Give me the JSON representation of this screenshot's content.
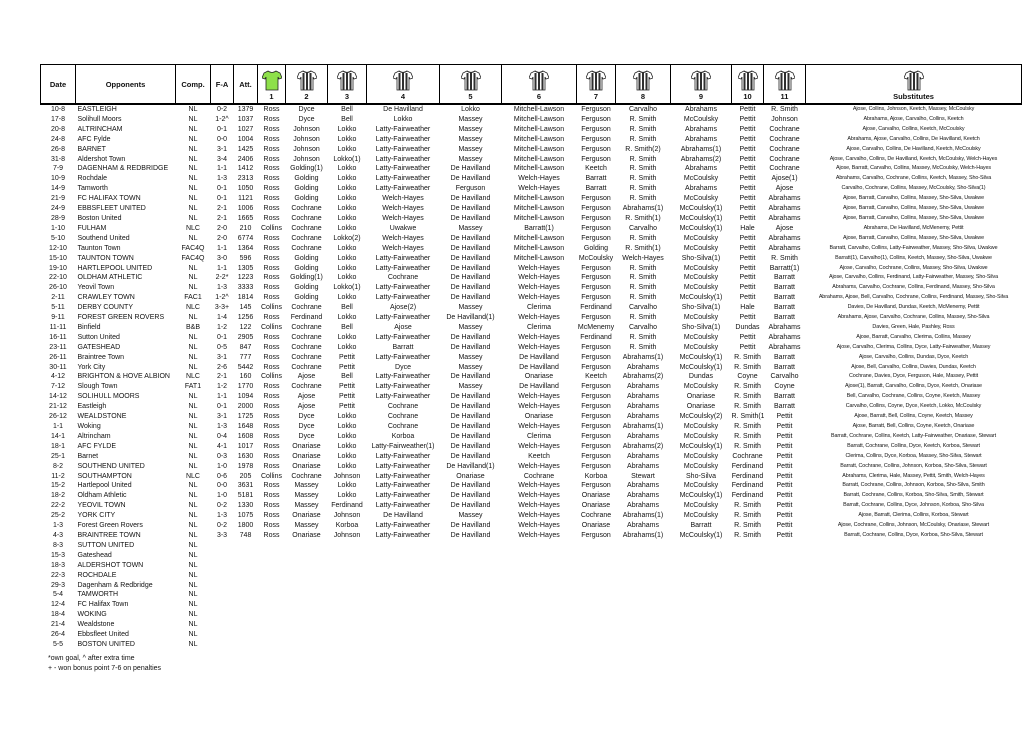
{
  "headers": {
    "date": "Date",
    "opponents": "Opponents",
    "comp": "Comp.",
    "fa": "F-A",
    "att": "Att.",
    "n1": "1",
    "n2": "2",
    "n3": "3",
    "n4": "4",
    "n5": "5",
    "n6": "6",
    "n7": "7",
    "n8": "8",
    "n9": "9",
    "n10": "10",
    "n11": "11",
    "subs": "Substitutes"
  },
  "colors": {
    "keeper_shirt": "#8ee04a",
    "outfield_shirt": "#2e2e2e"
  },
  "rows": [
    [
      "10-8",
      "EASTLEIGH",
      "NL",
      "0-2",
      "1379",
      "Ross",
      "Dyce",
      "Bell",
      "De Havilland",
      "Lokko",
      "Mitchell-Lawson",
      "Ferguson",
      "Carvalho",
      "Abrahams",
      "Pettit",
      "R. Smith",
      "Ajose, Collins, Johnson, Keetch, Massey, McCoulsky"
    ],
    [
      "17-8",
      "Solihull Moors",
      "NL",
      "1-2^",
      "1037",
      "Ross",
      "Dyce",
      "Bell",
      "Lokko",
      "Massey",
      "Mitchell-Lawson",
      "Ferguson",
      "R. Smith",
      "McCoulsky",
      "Pettit",
      "Johnson",
      "Abrahams, Ajose, Carvalho, Collins, Keetch"
    ],
    [
      "20-8",
      "ALTRINCHAM",
      "NL",
      "0-1",
      "1027",
      "Ross",
      "Johnson",
      "Lokko",
      "Latty-Fairweather",
      "Massey",
      "Mitchell-Lawson",
      "Ferguson",
      "R. Smith",
      "Abrahams",
      "Pettit",
      "Cochrane",
      "Ajose, Carvalho, Collins, Keetch, McCoulsky"
    ],
    [
      "24-8",
      "AFC Fylde",
      "NL",
      "0-0",
      "1004",
      "Ross",
      "Johnson",
      "Lokko",
      "Latty-Fairweather",
      "Massey",
      "Mitchell-Lawson",
      "Ferguson",
      "R. Smith",
      "Abrahams",
      "Pettit",
      "Cochrane",
      "Abrahams, Ajose, Carvalho, Collins, De Havilland, Keetch"
    ],
    [
      "26-8",
      "BARNET",
      "NL",
      "3-1",
      "1425",
      "Ross",
      "Johnson",
      "Lokko",
      "Latty-Fairweather",
      "Massey",
      "Mitchell-Lawson",
      "Ferguson",
      "R. Smith(2)",
      "Abrahams(1)",
      "Pettit",
      "Cochrane",
      "Ajose, Carvalho, Collins, De Havilland, Keetch, McCoulsky"
    ],
    [
      "31-8",
      "Aldershot Town",
      "NL",
      "3-4",
      "2406",
      "Ross",
      "Johnson",
      "Lokko(1)",
      "Latty-Fairweather",
      "Massey",
      "Mitchell-Lawson",
      "Ferguson",
      "R. Smith",
      "Abrahams(2)",
      "Pettit",
      "Cochrane",
      "Ajose, Carvalho, Collins, De Havilland, Keetch, McCoulsky, Welch-Hayes"
    ],
    [
      "7-9",
      "DAGENHAM & REDBRIDGE",
      "NL",
      "1-1",
      "1412",
      "Ross",
      "Golding(1)",
      "Lokko",
      "Latty-Fairweather",
      "De Havilland",
      "Mitchell-Lawson",
      "Keetch",
      "R. Smith",
      "Abrahams",
      "Pettit",
      "Cochrane",
      "Ajose, Barratt, Carvalho, Collins, Massey, McCoulsky, Welch-Hayes"
    ],
    [
      "10-9",
      "Rochdale",
      "NL",
      "1-3",
      "2313",
      "Ross",
      "Golding",
      "Lokko",
      "Latty-Fairweather",
      "De Havilland",
      "Welch-Hayes",
      "Barratt",
      "R. Smith",
      "McCoulsky",
      "Pettit",
      "Ajose(1)",
      "Abrahams, Carvalho, Cochrane, Collins, Keetch, Massey, Sho-Silva"
    ],
    [
      "14-9",
      "Tamworth",
      "NL",
      "0-1",
      "1050",
      "Ross",
      "Golding",
      "Lokko",
      "Latty-Fairweather",
      "Ferguson",
      "Welch-Hayes",
      "Barratt",
      "R. Smith",
      "Abrahams",
      "Pettit",
      "Ajose",
      "Carvalho, Cochrane, Collins, Massey, McCoulsky, Sho-Silva(1)"
    ],
    [
      "21-9",
      "FC HALIFAX TOWN",
      "NL",
      "0-1",
      "1121",
      "Ross",
      "Golding",
      "Lokko",
      "Welch-Hayes",
      "De Havilland",
      "Mitchell-Lawson",
      "Ferguson",
      "R. Smith",
      "McCoulsky",
      "Pettit",
      "Abrahams",
      "Ajose, Barratt, Carvalho, Collins, Massey, Sho-Silva, Uwakwe"
    ],
    [
      "24-9",
      "EBBSFLEET UNITED",
      "NL",
      "2-1",
      "1006",
      "Ross",
      "Cochrane",
      "Lokko",
      "Welch-Hayes",
      "De Havilland",
      "Mitchell-Lawson",
      "Ferguson",
      "Abrahams(1)",
      "McCoulsky(1)",
      "Pettit",
      "Abrahams",
      "Ajose, Barratt, Carvalho, Collins, Massey, Sho-Silva, Uwakwe"
    ],
    [
      "28-9",
      "Boston United",
      "NL",
      "2-1",
      "1665",
      "Ross",
      "Cochrane",
      "Lokko",
      "Welch-Hayes",
      "De Havilland",
      "Mitchell-Lawson",
      "Ferguson",
      "R. Smith(1)",
      "McCoulsky(1)",
      "Pettit",
      "Abrahams",
      "Ajose, Barratt, Carvalho, Collins, Massey, Sho-Silva, Uwakwe"
    ],
    [
      "1-10",
      "FULHAM",
      "NLC",
      "2-0",
      "210",
      "Collins",
      "Cochrane",
      "Lokko",
      "Uwakwe",
      "Massey",
      "Barratt(1)",
      "Ferguson",
      "Carvalho",
      "McCoulsky(1)",
      "Hale",
      "Ajose",
      "Abrahams, De Havilland, McMenemy, Pettit"
    ],
    [
      "5-10",
      "Southend United",
      "NL",
      "2-0",
      "6774",
      "Ross",
      "Cochrane",
      "Lokko(2)",
      "Welch-Hayes",
      "De Havilland",
      "Mitchell-Lawson",
      "Ferguson",
      "R. Smith",
      "McCoulsky",
      "Pettit",
      "Abrahams",
      "Ajose, Barratt, Carvalho, Collins, Massey, Sho-Silva, Uwakwe"
    ],
    [
      "12-10",
      "Taunton Town",
      "FAC4Q",
      "1-1",
      "1364",
      "Ross",
      "Cochrane",
      "Lokko",
      "Welch-Hayes",
      "De Havilland",
      "Mitchell-Lawson",
      "Golding",
      "R. Smith(1)",
      "McCoulsky",
      "Pettit",
      "Abrahams",
      "Barratt, Carvalho, Collins, Latty-Fairweather, Massey, Sho-Silva, Uwakwe"
    ],
    [
      "15-10",
      "TAUNTON TOWN",
      "FAC4Q",
      "3-0",
      "596",
      "Ross",
      "Golding",
      "Lokko",
      "Latty-Fairweather",
      "De Havilland",
      "Mitchell-Lawson",
      "McCoulsky",
      "Welch-Hayes",
      "Sho-Silva(1)",
      "Pettit",
      "R. Smith",
      "Barratt(1), Carvalho(1), Collins, Keetch, Massey, Sho-Silva, Uwakwe"
    ],
    [
      "19-10",
      "HARTLEPOOL UNITED",
      "NL",
      "1-1",
      "1305",
      "Ross",
      "Golding",
      "Lokko",
      "Latty-Fairweather",
      "De Havilland",
      "Welch-Hayes",
      "Ferguson",
      "R. Smith",
      "McCoulsky",
      "Pettit",
      "Barratt(1)",
      "Ajose, Carvalho, Cochrane, Collins, Massey, Sho-Silva, Uwakwe"
    ],
    [
      "22-10",
      "OLDHAM ATHLETIC",
      "NL",
      "2-2*",
      "1223",
      "Ross",
      "Golding(1)",
      "Lokko",
      "Cochrane",
      "De Havilland",
      "Welch-Hayes",
      "Ferguson",
      "R. Smith",
      "McCoulsky",
      "Pettit",
      "Barratt",
      "Ajose, Carvalho, Collins, Ferdinand, Latty-Fairweather, Massey, Sho-Silva"
    ],
    [
      "26-10",
      "Yeovil Town",
      "NL",
      "1-3",
      "3333",
      "Ross",
      "Golding",
      "Lokko(1)",
      "Latty-Fairweather",
      "De Havilland",
      "Welch-Hayes",
      "Ferguson",
      "R. Smith",
      "McCoulsky",
      "Pettit",
      "Barratt",
      "Abrahams, Carvalho, Cochrane, Collins, Ferdinand, Massey, Sho-Silva"
    ],
    [
      "2-11",
      "CRAWLEY TOWN",
      "FAC1",
      "1-2^",
      "1814",
      "Ross",
      "Golding",
      "Lokko",
      "Latty-Fairweather",
      "De Havilland",
      "Welch-Hayes",
      "Ferguson",
      "R. Smith",
      "McCoulsky(1)",
      "Pettit",
      "Barratt",
      "Abrahams, Ajose, Bell, Carvalho, Cochrane, Collins, Ferdinand, Massey, Sho-Silva"
    ],
    [
      "5-11",
      "DERBY COUNTY",
      "NLC",
      "3-3+",
      "145",
      "Collins",
      "Cochrane",
      "Bell",
      "Ajose(2)",
      "Massey",
      "Clerima",
      "Ferdinand",
      "Carvalho",
      "Sho-Silva(1)",
      "Hale",
      "Barratt",
      "Davies, De Havilland, Dundas, Keetch, McMenemy, Pettit"
    ],
    [
      "9-11",
      "FOREST GREEN ROVERS",
      "NL",
      "1-4",
      "1256",
      "Ross",
      "Ferdinand",
      "Lokko",
      "Latty-Fairweather",
      "De Havilland(1)",
      "Welch-Hayes",
      "Ferguson",
      "R. Smith",
      "McCoulsky",
      "Pettit",
      "Barratt",
      "Abrahams, Ajose, Carvalho, Cochrane, Collins, Massey, Sho-Silva"
    ],
    [
      "11-11",
      "Binfield",
      "B&B",
      "1-2",
      "122",
      "Collins",
      "Cochrane",
      "Bell",
      "Ajose",
      "Massey",
      "Clerima",
      "McMenemy",
      "Carvalho",
      "Sho-Silva(1)",
      "Dundas",
      "Abrahams",
      "Davies, Green, Hale, Pashley, Ross"
    ],
    [
      "16-11",
      "Sutton United",
      "NL",
      "0-1",
      "2905",
      "Ross",
      "Cochrane",
      "Lokko",
      "Latty-Fairweather",
      "De Havilland",
      "Welch-Hayes",
      "Ferdinand",
      "R. Smith",
      "McCoulsky",
      "Pettit",
      "Abrahams",
      "Ajose, Barratt, Carvalho, Clerima, Collins, Massey"
    ],
    [
      "23-11",
      "GATESHEAD",
      "NL",
      "0-5",
      "847",
      "Ross",
      "Cochrane",
      "Lokko",
      "Barratt",
      "De Havilland",
      "Welch-Hayes",
      "Ferguson",
      "R. Smith",
      "McCoulsky",
      "Pettit",
      "Abrahams",
      "Ajose, Carvalho, Clerima, Collins, Dyce, Latty-Fairweather, Massey"
    ],
    [
      "26-11",
      "Braintree Town",
      "NL",
      "3-1",
      "777",
      "Ross",
      "Cochrane",
      "Pettit",
      "Latty-Fairweather",
      "Massey",
      "De Havilland",
      "Ferguson",
      "Abrahams(1)",
      "McCoulsky(1)",
      "R. Smith",
      "Barratt",
      "Ajose, Carvalho, Collins, Dundas, Dyce, Keetch"
    ],
    [
      "30-11",
      "York City",
      "NL",
      "2-6",
      "5442",
      "Ross",
      "Cochrane",
      "Pettit",
      "Dyce",
      "Massey",
      "De Havilland",
      "Ferguson",
      "Abrahams",
      "McCoulsky(1)",
      "R. Smith",
      "Barratt",
      "Ajose, Bell, Carvalho, Collins, Davies, Dundas, Keetch"
    ],
    [
      "4-12",
      "BRIGHTON & HOVE ALBION",
      "NLC",
      "2-1",
      "160",
      "Collins",
      "Ajose",
      "Bell",
      "Latty-Fairweather",
      "De Havilland",
      "Onariase",
      "Keetch",
      "Abrahams(2)",
      "Dundas",
      "Coyne",
      "Carvalho",
      "Cochrane, Davies, Dyce, Ferguson, Hale, Massey, Pettit"
    ],
    [
      "7-12",
      "Slough Town",
      "FAT1",
      "1-2",
      "1770",
      "Ross",
      "Cochrane",
      "Pettit",
      "Latty-Fairweather",
      "Massey",
      "De Havilland",
      "Ferguson",
      "Abrahams",
      "McCoulsky",
      "R. Smith",
      "Coyne",
      "Ajose(1), Barratt, Carvalho, Collins, Dyce, Keetch, Onariase"
    ],
    [
      "14-12",
      "SOLIHULL MOORS",
      "NL",
      "1-1",
      "1094",
      "Ross",
      "Ajose",
      "Pettit",
      "Latty-Fairweather",
      "De Havilland",
      "Welch-Hayes",
      "Ferguson",
      "Abrahams",
      "Onariase",
      "R. Smith",
      "Barratt",
      "Bell, Carvalho, Cochrane, Collins, Coyne, Keetch, Massey"
    ],
    [
      "21-12",
      "Eastleigh",
      "NL",
      "0-1",
      "2000",
      "Ross",
      "Ajose",
      "Pettit",
      "Cochrane",
      "De Havilland",
      "Welch-Hayes",
      "Ferguson",
      "Abrahams",
      "Onariase",
      "R. Smith",
      "Barratt",
      "Carvalho, Collins, Coyne, Dyce, Keetch, Lokko, McCoulsky"
    ],
    [
      "26-12",
      "WEALDSTONE",
      "NL",
      "3-1",
      "1725",
      "Ross",
      "Dyce",
      "Lokko",
      "Cochrane",
      "De Havilland",
      "Onariase",
      "Ferguson",
      "Abrahams",
      "McCoulsky(2)",
      "R. Smith(1)",
      "Pettit",
      "Ajose, Barratt, Bell, Collins, Coyne, Keetch, Massey"
    ],
    [
      "1-1",
      "Woking",
      "NL",
      "1-3",
      "1648",
      "Ross",
      "Dyce",
      "Lokko",
      "Cochrane",
      "De Havilland",
      "Welch-Hayes",
      "Ferguson",
      "Abrahams(1)",
      "McCoulsky",
      "R. Smith",
      "Pettit",
      "Ajose, Barratt, Bell, Collins, Coyne, Keetch, Onariase"
    ],
    [
      "14-1",
      "Altrincham",
      "NL",
      "0-4",
      "1608",
      "Ross",
      "Dyce",
      "Lokko",
      "Korboa",
      "De Havilland",
      "Clerima",
      "Ferguson",
      "Abrahams",
      "McCoulsky",
      "R. Smith",
      "Pettit",
      "Barratt, Cochrane, Collins, Keetch, Latty-Fairweather, Onariase, Stewart"
    ],
    [
      "18-1",
      "AFC FYLDE",
      "NL",
      "4-1",
      "1017",
      "Ross",
      "Onariase",
      "Lokko",
      "Latty-Fairweather(1)",
      "De Havilland",
      "Welch-Hayes",
      "Ferguson",
      "Abrahams(2)",
      "McCoulsky(1)",
      "R. Smith",
      "Pettit",
      "Barratt, Cochrane, Collins, Dyce, Keetch, Korboa, Stewart"
    ],
    [
      "25-1",
      "Barnet",
      "NL",
      "0-3",
      "1630",
      "Ross",
      "Onariase",
      "Lokko",
      "Latty-Fairweather",
      "De Havilland",
      "Keetch",
      "Ferguson",
      "Abrahams",
      "McCoulsky",
      "Cochrane",
      "Pettit",
      "Clerima, Collins, Dyce, Korboa, Massey, Sho-Silva, Stewart"
    ],
    [
      "8-2",
      "SOUTHEND UNITED",
      "NL",
      "1-0",
      "1978",
      "Ross",
      "Onariase",
      "Lokko",
      "Latty-Fairweather",
      "De Havilland(1)",
      "Welch-Hayes",
      "Ferguson",
      "Abrahams",
      "McCoulsky",
      "Ferdinand",
      "Pettit",
      "Barratt, Cochrane, Collins, Johnson, Korboa, Sho-Silva, Stewart"
    ],
    [
      "11-2",
      "SOUTHAMPTON",
      "NLC",
      "0-6",
      "205",
      "Collins",
      "Cochrane",
      "Johnson",
      "Latty-Fairweather",
      "Onariase",
      "Cochrane",
      "Korboa",
      "Stewart",
      "Sho-Silva",
      "Ferdinand",
      "Pettit",
      "Abrahams, Clerima, Hale, Massey, Pettit, Smith, Welch-Hayes"
    ],
    [
      "15-2",
      "Hartlepool United",
      "NL",
      "0-0",
      "3631",
      "Ross",
      "Massey",
      "Lokko",
      "Latty-Fairweather",
      "De Havilland",
      "Welch-Hayes",
      "Ferguson",
      "Abrahams",
      "McCoulsky",
      "Ferdinand",
      "Pettit",
      "Barratt, Cochrane, Collins, Johnson, Korboa, Sho-Silva, Smith"
    ],
    [
      "18-2",
      "Oldham Athletic",
      "NL",
      "1-0",
      "5181",
      "Ross",
      "Massey",
      "Lokko",
      "Latty-Fairweather",
      "De Havilland",
      "Welch-Hayes",
      "Onariase",
      "Abrahams",
      "McCoulsky(1)",
      "Ferdinand",
      "Pettit",
      "Barratt, Cochrane, Collins, Korboa, Sho-Silva, Smith, Stewart"
    ],
    [
      "22-2",
      "YEOVIL TOWN",
      "NL",
      "0-2",
      "1330",
      "Ross",
      "Massey",
      "Ferdinand",
      "Latty-Fairweather",
      "De Havilland",
      "Welch-Hayes",
      "Onariase",
      "Abrahams",
      "McCoulsky",
      "R. Smith",
      "Pettit",
      "Barratt, Cochrane, Collins, Dyce, Johnson, Korboa, Sho-Silva"
    ],
    [
      "25-2",
      "YORK CITY",
      "NL",
      "1-3",
      "1075",
      "Ross",
      "Onariase",
      "Johnson",
      "De Havilland",
      "Massey",
      "Welch-Hayes",
      "Cochrane",
      "Abrahams(1)",
      "McCoulsky",
      "R. Smith",
      "Pettit",
      "Ajose, Barratt, Clerima, Collins, Korboa, Stewart"
    ],
    [
      "1-3",
      "Forest Green Rovers",
      "NL",
      "0-2",
      "1800",
      "Ross",
      "Massey",
      "Korboa",
      "Latty-Fairweather",
      "De Havilland",
      "Welch-Hayes",
      "Onariase",
      "Abrahams",
      "Barratt",
      "R. Smith",
      "Pettit",
      "Ajose, Cochrane, Collins, Johnson, McCoulsky, Onariase, Stewart"
    ],
    [
      "4-3",
      "BRAINTREE TOWN",
      "NL",
      "3-3",
      "748",
      "Ross",
      "Onariase",
      "Johnson",
      "Latty-Fairweather",
      "De Havilland",
      "Welch-Hayes",
      "Ferguson",
      "Abrahams(1)",
      "McCoulsky(1)",
      "R. Smith",
      "Pettit",
      "Barratt, Cochrane, Collins, Dyce, Korboa, Sho-Silva, Stewart"
    ],
    [
      "8-3",
      "SUTTON UNITED",
      "NL"
    ],
    [
      "15-3",
      "Gateshead",
      "NL"
    ],
    [
      "18-3",
      "ALDERSHOT TOWN",
      "NL"
    ],
    [
      "22-3",
      "ROCHDALE",
      "NL"
    ],
    [
      "29-3",
      "Dagenham & Redbridge",
      "NL"
    ],
    [
      "5-4",
      "TAMWORTH",
      "NL"
    ],
    [
      "12-4",
      "FC Halifax Town",
      "NL"
    ],
    [
      "18-4",
      "WOKING",
      "NL"
    ],
    [
      "21-4",
      "Wealdstone",
      "NL"
    ],
    [
      "26-4",
      "Ebbsfleet United",
      "NL"
    ],
    [
      "5-5",
      "BOSTON UNITED",
      "NL"
    ]
  ],
  "notes": {
    "line1": "*own goal, ^ after extra time",
    "line2": "+ - won bonus point 7-6 on penalties"
  }
}
